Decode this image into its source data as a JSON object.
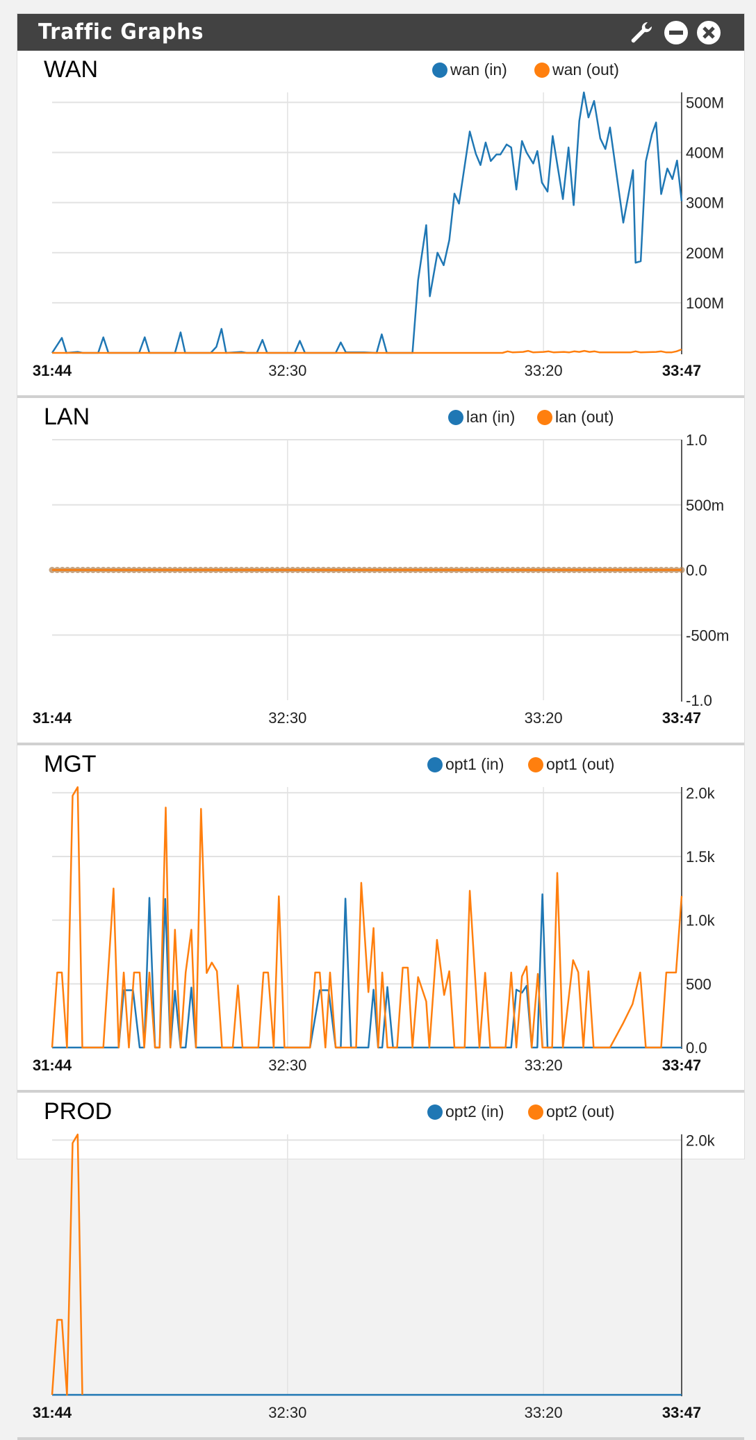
{
  "widget": {
    "title": "Traffic Graphs",
    "icons": [
      "wrench-icon",
      "minimize-icon",
      "close-icon"
    ]
  },
  "colors": {
    "in": "#1f77b4",
    "out": "#ff7f0e",
    "header_bg": "#424242"
  },
  "x_axis": {
    "start": "31:44",
    "end": "33:47",
    "ticks": [
      {
        "t": 46,
        "label": "32:30"
      },
      {
        "t": 96,
        "label": "33:20"
      }
    ],
    "span_seconds": 123
  },
  "chart_data": [
    {
      "type": "line",
      "title": "WAN",
      "ylim": [
        0,
        520000000
      ],
      "yticks": [
        {
          "v": 100000000,
          "label": "100M"
        },
        {
          "v": 200000000,
          "label": "200M"
        },
        {
          "v": 300000000,
          "label": "300M"
        },
        {
          "v": 400000000,
          "label": "400M"
        },
        {
          "v": 500000000,
          "label": "500M"
        }
      ],
      "series": [
        {
          "name": "wan (in)",
          "color": "in",
          "unit": "M",
          "points": [
            [
              0,
              0
            ],
            [
              1.9,
              30
            ],
            [
              2.8,
              0
            ],
            [
              5,
              2
            ],
            [
              6,
              0
            ],
            [
              9,
              0
            ],
            [
              10,
              31
            ],
            [
              11,
              0
            ],
            [
              17,
              0
            ],
            [
              18.1,
              31
            ],
            [
              19,
              0
            ],
            [
              24,
              0
            ],
            [
              25.1,
              41
            ],
            [
              26,
              0
            ],
            [
              31,
              0
            ],
            [
              32.1,
              12
            ],
            [
              33.1,
              48
            ],
            [
              34,
              0
            ],
            [
              37,
              2
            ],
            [
              38,
              0
            ],
            [
              40,
              0
            ],
            [
              41.1,
              26
            ],
            [
              42,
              0
            ],
            [
              47.4,
              0
            ],
            [
              48.4,
              24
            ],
            [
              49.4,
              0
            ],
            [
              55.4,
              0
            ],
            [
              56.4,
              21
            ],
            [
              57.4,
              1
            ],
            [
              61,
              1
            ],
            [
              63.4,
              0
            ],
            [
              64.4,
              37
            ],
            [
              65.4,
              0
            ],
            [
              70.4,
              0
            ],
            [
              71.5,
              145
            ],
            [
              73.1,
              255
            ],
            [
              73.8,
              113
            ],
            [
              75.3,
              200
            ],
            [
              76.5,
              175
            ],
            [
              77.6,
              225
            ],
            [
              78.6,
              318
            ],
            [
              79.5,
              298
            ],
            [
              81.6,
              442
            ],
            [
              82.8,
              397
            ],
            [
              83.7,
              375
            ],
            [
              84.7,
              420
            ],
            [
              85.7,
              383
            ],
            [
              86.8,
              396
            ],
            [
              87.6,
              396
            ],
            [
              88.8,
              416
            ],
            [
              89.7,
              410
            ],
            [
              90.7,
              326
            ],
            [
              91.8,
              423
            ],
            [
              92.7,
              400
            ],
            [
              94,
              378
            ],
            [
              94.8,
              403
            ],
            [
              95.7,
              340
            ],
            [
              96.8,
              322
            ],
            [
              97.8,
              433
            ],
            [
              99.8,
              307
            ],
            [
              100.9,
              410
            ],
            [
              101.9,
              295
            ],
            [
              103,
              463
            ],
            [
              103.9,
              520
            ],
            [
              104.8,
              470
            ],
            [
              105.9,
              503
            ],
            [
              107.1,
              428
            ],
            [
              108.1,
              407
            ],
            [
              109,
              450
            ],
            [
              111.6,
              260
            ],
            [
              113.5,
              365
            ],
            [
              114,
              180
            ],
            [
              115,
              183
            ],
            [
              116,
              382
            ],
            [
              117.2,
              437
            ],
            [
              118,
              460
            ],
            [
              119,
              317
            ],
            [
              120.2,
              368
            ],
            [
              121.2,
              347
            ],
            [
              122.1,
              384
            ],
            [
              123,
              303
            ]
          ]
        },
        {
          "name": "wan (out)",
          "color": "out",
          "unit": "M",
          "points": [
            [
              0,
              0
            ],
            [
              88,
              0
            ],
            [
              89,
              3
            ],
            [
              90,
              1
            ],
            [
              92,
              2
            ],
            [
              93,
              4
            ],
            [
              94,
              1
            ],
            [
              96,
              2
            ],
            [
              97,
              3
            ],
            [
              98,
              1
            ],
            [
              100,
              2
            ],
            [
              101,
              1
            ],
            [
              102,
              3
            ],
            [
              103,
              2
            ],
            [
              104,
              4
            ],
            [
              105,
              2
            ],
            [
              106,
              3
            ],
            [
              107,
              1
            ],
            [
              110,
              1
            ],
            [
              113,
              1
            ],
            [
              114,
              3
            ],
            [
              115,
              1
            ],
            [
              118,
              2
            ],
            [
              119,
              3
            ],
            [
              120,
              1
            ],
            [
              121,
              1
            ],
            [
              122,
              3
            ],
            [
              123,
              7
            ]
          ]
        }
      ]
    },
    {
      "type": "line",
      "title": "LAN",
      "ylim": [
        -1,
        1
      ],
      "yticks": [
        {
          "v": -1,
          "label": "-1.0"
        },
        {
          "v": -0.5,
          "label": "-500m"
        },
        {
          "v": 0,
          "label": "0.0"
        },
        {
          "v": 0.5,
          "label": "500m"
        },
        {
          "v": 1,
          "label": "1.0"
        }
      ],
      "markers": true,
      "series": [
        {
          "name": "lan (in)",
          "color": "in",
          "unit": "",
          "points": [
            [
              0,
              0
            ],
            [
              123,
              0
            ]
          ]
        },
        {
          "name": "lan (out)",
          "color": "out",
          "unit": "",
          "points": [
            [
              0,
              0
            ],
            [
              123,
              0
            ]
          ]
        }
      ]
    },
    {
      "type": "line",
      "title": "MGT",
      "ylim": [
        0,
        2045
      ],
      "yticks": [
        {
          "v": 0,
          "label": "0.0"
        },
        {
          "v": 500,
          "label": "500"
        },
        {
          "v": 1000,
          "label": "1.0k"
        },
        {
          "v": 1500,
          "label": "1.5k"
        },
        {
          "v": 2000,
          "label": "2.0k"
        }
      ],
      "series": [
        {
          "name": "opt1 (in)",
          "color": "in",
          "unit": "",
          "points": [
            [
              0,
              0
            ],
            [
              13,
              0
            ],
            [
              14,
              450
            ],
            [
              15.8,
              450
            ],
            [
              17.1,
              0
            ],
            [
              18,
              0
            ],
            [
              19,
              1175
            ],
            [
              20.1,
              0
            ],
            [
              21,
              0
            ],
            [
              22.1,
              1167
            ],
            [
              23.1,
              0
            ],
            [
              24,
              446
            ],
            [
              25.1,
              0
            ],
            [
              26.1,
              0
            ],
            [
              27.2,
              471
            ],
            [
              28.1,
              0
            ],
            [
              50.4,
              0
            ],
            [
              52.3,
              450
            ],
            [
              54,
              450
            ],
            [
              55.4,
              0
            ],
            [
              56.4,
              0
            ],
            [
              57.3,
              1169
            ],
            [
              58.4,
              0
            ],
            [
              61.8,
              0
            ],
            [
              62.8,
              454
            ],
            [
              63.7,
              0
            ],
            [
              64.5,
              0
            ],
            [
              65.5,
              475
            ],
            [
              66.6,
              0
            ],
            [
              89.7,
              0
            ],
            [
              90.7,
              454
            ],
            [
              91.8,
              431
            ],
            [
              92.7,
              484
            ],
            [
              93.7,
              0
            ],
            [
              94.8,
              0
            ],
            [
              95.8,
              1203
            ],
            [
              96.8,
              0
            ],
            [
              123,
              0
            ]
          ]
        },
        {
          "name": "opt1 (out)",
          "color": "out",
          "unit": "",
          "points": [
            [
              0,
              0
            ],
            [
              1,
              589
            ],
            [
              1.9,
              589
            ],
            [
              2.9,
              0
            ],
            [
              4,
              1977
            ],
            [
              5,
              2044
            ],
            [
              5.9,
              0
            ],
            [
              10,
              0
            ],
            [
              12,
              1249
            ],
            [
              13,
              0
            ],
            [
              14,
              589
            ],
            [
              15,
              0
            ],
            [
              16,
              589
            ],
            [
              17.1,
              589
            ],
            [
              18,
              0
            ],
            [
              19,
              589
            ],
            [
              20.1,
              0
            ],
            [
              21,
              0
            ],
            [
              22.2,
              1884
            ],
            [
              23.1,
              0
            ],
            [
              24,
              925
            ],
            [
              25.1,
              0
            ],
            [
              26.1,
              589
            ],
            [
              27.2,
              925
            ],
            [
              28.1,
              0
            ],
            [
              29.1,
              1874
            ],
            [
              30.2,
              585
            ],
            [
              31.2,
              667
            ],
            [
              32.2,
              600
            ],
            [
              33.2,
              0
            ],
            [
              35.3,
              0
            ],
            [
              36.3,
              488
            ],
            [
              37.2,
              0
            ],
            [
              40.3,
              0
            ],
            [
              41.3,
              589
            ],
            [
              42.2,
              589
            ],
            [
              43.3,
              0
            ],
            [
              44.3,
              1188
            ],
            [
              45.4,
              0
            ],
            [
              50.4,
              0
            ],
            [
              51.4,
              589
            ],
            [
              52.3,
              589
            ],
            [
              53.4,
              0
            ],
            [
              54.3,
              589
            ],
            [
              55.4,
              0
            ],
            [
              59.4,
              0
            ],
            [
              60.4,
              1293
            ],
            [
              61.8,
              435
            ],
            [
              62.8,
              938
            ],
            [
              63.7,
              0
            ],
            [
              64.5,
              589
            ],
            [
              65.5,
              0
            ],
            [
              67.4,
              0
            ],
            [
              68.5,
              627
            ],
            [
              69.5,
              627
            ],
            [
              70.4,
              0
            ],
            [
              71.5,
              553
            ],
            [
              73.1,
              362
            ],
            [
              73.7,
              0
            ],
            [
              75.2,
              845
            ],
            [
              76.6,
              412
            ],
            [
              77.6,
              599
            ],
            [
              78.6,
              0
            ],
            [
              80.6,
              0
            ],
            [
              81.6,
              1230
            ],
            [
              83.5,
              0
            ],
            [
              84.6,
              587
            ],
            [
              85.6,
              0
            ],
            [
              88.6,
              0
            ],
            [
              89.7,
              589
            ],
            [
              90.7,
              0
            ],
            [
              91.8,
              559
            ],
            [
              92.7,
              637
            ],
            [
              93.7,
              0
            ],
            [
              94.9,
              578
            ],
            [
              95.8,
              0
            ],
            [
              97.7,
              0
            ],
            [
              98.7,
              1371
            ],
            [
              99.8,
              0
            ],
            [
              101.8,
              686
            ],
            [
              102.8,
              591
            ],
            [
              103.8,
              0
            ],
            [
              104.8,
              598
            ],
            [
              105.8,
              0
            ],
            [
              109,
              0
            ],
            [
              111.6,
              193
            ],
            [
              113.4,
              341
            ],
            [
              114.9,
              589
            ],
            [
              116,
              0
            ],
            [
              119,
              0
            ],
            [
              120,
              589
            ],
            [
              121.9,
              589
            ],
            [
              123,
              1190
            ]
          ]
        }
      ]
    },
    {
      "type": "line",
      "title": "PROD",
      "ylim": [
        0,
        2045
      ],
      "yticks": [
        {
          "v": 2000,
          "label": "2.0k"
        }
      ],
      "series": [
        {
          "name": "opt2 (in)",
          "color": "in",
          "unit": "",
          "points": [
            [
              0,
              0
            ],
            [
              123,
              0
            ]
          ]
        },
        {
          "name": "opt2 (out)",
          "color": "out",
          "unit": "",
          "points": [
            [
              0,
              0
            ],
            [
              1,
              589
            ],
            [
              1.9,
              589
            ],
            [
              2.9,
              0
            ],
            [
              4,
              1977
            ],
            [
              5,
              2044
            ],
            [
              5.9,
              0
            ]
          ]
        }
      ]
    }
  ]
}
